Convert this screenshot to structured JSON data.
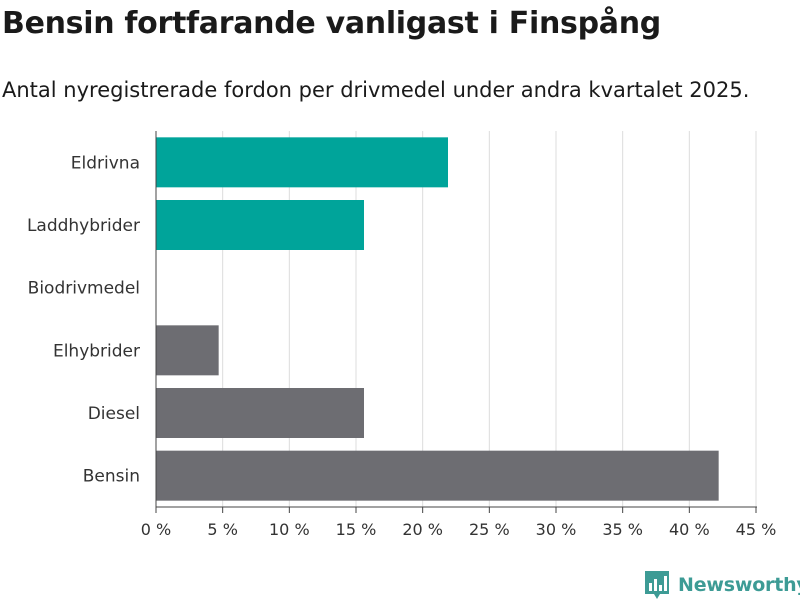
{
  "title": "Bensin fortfarande vanligast i Finspång",
  "subtitle": "Antal nyregistrerade fordon per drivmedel under andra kvartalet 2025.",
  "brand": "Newsworthy",
  "colors": {
    "highlight": "#00a49a",
    "base": "#6d6d72",
    "grid": "#dcdcdc",
    "brand": "#3d9b95"
  },
  "chart_data": {
    "type": "bar",
    "orientation": "horizontal",
    "categories": [
      "Eldrivna",
      "Laddhybrider",
      "Biodrivmedel",
      "Elhybrider",
      "Diesel",
      "Bensin"
    ],
    "values": [
      21.9,
      15.6,
      0,
      4.7,
      15.6,
      42.2
    ],
    "bar_colors": [
      "#00a49a",
      "#00a49a",
      "#6d6d72",
      "#6d6d72",
      "#6d6d72",
      "#6d6d72"
    ],
    "xlim": [
      0,
      45
    ],
    "xticks": [
      0,
      5,
      10,
      15,
      20,
      25,
      30,
      35,
      40,
      45
    ],
    "tick_suffix": " %",
    "grid": true
  }
}
